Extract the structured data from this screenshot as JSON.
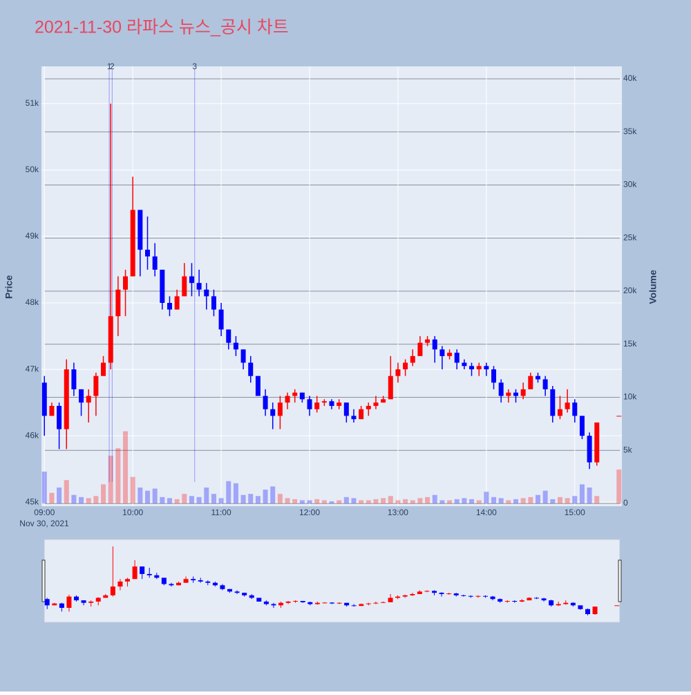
{
  "chart_data": {
    "type": "candlestick",
    "title": "2021-11-30 라파스 뉴스_공시 차트",
    "y_title": "Price",
    "y2_title": "Volume",
    "x_date_label": "Nov 30, 2021",
    "up_color": "#ff0000",
    "down_color": "#0000ff",
    "x": [
      "2021-11-30 09:00",
      "2021-11-30 09:05",
      "2021-11-30 09:10",
      "2021-11-30 09:15",
      "2021-11-30 09:20",
      "2021-11-30 09:25",
      "2021-11-30 09:30",
      "2021-11-30 09:35",
      "2021-11-30 09:40",
      "2021-11-30 09:45",
      "2021-11-30 09:50",
      "2021-11-30 09:55",
      "2021-11-30 10:00",
      "2021-11-30 10:05",
      "2021-11-30 10:10",
      "2021-11-30 10:15",
      "2021-11-30 10:20",
      "2021-11-30 10:25",
      "2021-11-30 10:30",
      "2021-11-30 10:35",
      "2021-11-30 10:40",
      "2021-11-30 10:45",
      "2021-11-30 10:50",
      "2021-11-30 10:55",
      "2021-11-30 11:00",
      "2021-11-30 11:05",
      "2021-11-30 11:10",
      "2021-11-30 11:15",
      "2021-11-30 11:20",
      "2021-11-30 11:25",
      "2021-11-30 11:30",
      "2021-11-30 11:35",
      "2021-11-30 11:40",
      "2021-11-30 11:45",
      "2021-11-30 11:50",
      "2021-11-30 11:55",
      "2021-11-30 12:00",
      "2021-11-30 12:05",
      "2021-11-30 12:10",
      "2021-11-30 12:15",
      "2021-11-30 12:20",
      "2021-11-30 12:25",
      "2021-11-30 12:30",
      "2021-11-30 12:35",
      "2021-11-30 12:40",
      "2021-11-30 12:45",
      "2021-11-30 12:50",
      "2021-11-30 12:55",
      "2021-11-30 13:00",
      "2021-11-30 13:05",
      "2021-11-30 13:10",
      "2021-11-30 13:15",
      "2021-11-30 13:20",
      "2021-11-30 13:25",
      "2021-11-30 13:30",
      "2021-11-30 13:35",
      "2021-11-30 13:40",
      "2021-11-30 13:45",
      "2021-11-30 13:50",
      "2021-11-30 13:55",
      "2021-11-30 14:00",
      "2021-11-30 14:05",
      "2021-11-30 14:10",
      "2021-11-30 14:15",
      "2021-11-30 14:20",
      "2021-11-30 14:25",
      "2021-11-30 14:30",
      "2021-11-30 14:35",
      "2021-11-30 14:40",
      "2021-11-30 14:45",
      "2021-11-30 14:50",
      "2021-11-30 14:55",
      "2021-11-30 15:00",
      "2021-11-30 15:05",
      "2021-11-30 15:10",
      "2021-11-30 15:15",
      "2021-11-30 15:20",
      "2021-11-30 15:25",
      "2021-11-30 15:30"
    ],
    "open": [
      46800,
      46300,
      46450,
      46100,
      47000,
      46700,
      46500,
      46600,
      46900,
      47100,
      47800,
      48200,
      48400,
      49400,
      48800,
      48700,
      48500,
      48000,
      47900,
      48100,
      48400,
      48300,
      48200,
      48100,
      47900,
      47600,
      47400,
      47300,
      47100,
      46900,
      46600,
      46400,
      46300,
      46500,
      46600,
      46650,
      46550,
      46400,
      46500,
      46520,
      46450,
      46500,
      46300,
      46250,
      46400,
      46450,
      46500,
      46550,
      46900,
      47000,
      47100,
      47200,
      47400,
      47450,
      47300,
      47200,
      47250,
      47100,
      47050,
      47000,
      47050,
      47000,
      46800,
      46600,
      46650,
      46600,
      46700,
      46900,
      46850,
      46700,
      46300,
      46400,
      46500,
      46300,
      46000,
      45600,
      null,
      null,
      46300
    ],
    "high": [
      46900,
      46500,
      46500,
      47150,
      47100,
      46700,
      46700,
      46950,
      47200,
      51000,
      48400,
      48500,
      49900,
      49400,
      49300,
      48900,
      48500,
      48100,
      48200,
      48600,
      48600,
      48500,
      48300,
      48200,
      48000,
      47600,
      47500,
      47300,
      47200,
      46900,
      46700,
      46500,
      46600,
      46650,
      46700,
      46650,
      46600,
      46600,
      46550,
      46550,
      46550,
      46500,
      46400,
      46450,
      46500,
      46600,
      46600,
      47200,
      47100,
      47150,
      47300,
      47500,
      47500,
      47500,
      47350,
      47300,
      47300,
      47150,
      47100,
      47100,
      47100,
      47050,
      46850,
      46700,
      46700,
      46800,
      46950,
      46950,
      46900,
      46750,
      46600,
      46700,
      46550,
      46300,
      46050,
      46200,
      null,
      null,
      46300
    ],
    "low": [
      46000,
      46300,
      45800,
      45800,
      46600,
      46300,
      46200,
      46300,
      46900,
      47000,
      47500,
      47800,
      48400,
      48400,
      48500,
      48400,
      47900,
      47800,
      47900,
      48100,
      48100,
      48100,
      47900,
      47800,
      47500,
      47300,
      47200,
      47000,
      46800,
      46600,
      46300,
      46100,
      46100,
      46400,
      46500,
      46500,
      46300,
      46350,
      46450,
      46400,
      46400,
      46200,
      46200,
      46250,
      46300,
      46400,
      46500,
      46550,
      46800,
      46900,
      47050,
      47200,
      47350,
      47100,
      47000,
      47150,
      47000,
      47000,
      46900,
      46900,
      46900,
      46700,
      46500,
      46500,
      46500,
      46550,
      46700,
      46800,
      46600,
      46200,
      46250,
      46350,
      46200,
      45950,
      45500,
      45550,
      null,
      null,
      46300
    ],
    "close": [
      46300,
      46450,
      46100,
      47000,
      46700,
      46500,
      46600,
      46900,
      47100,
      47800,
      48200,
      48400,
      49400,
      48800,
      48700,
      48500,
      48000,
      47900,
      48100,
      48400,
      48300,
      48200,
      48100,
      47900,
      47600,
      47400,
      47300,
      47100,
      46900,
      46600,
      46400,
      46300,
      46500,
      46600,
      46650,
      46550,
      46400,
      46500,
      46520,
      46450,
      46500,
      46300,
      46250,
      46400,
      46450,
      46500,
      46550,
      46900,
      47000,
      47100,
      47200,
      47400,
      47450,
      47300,
      47200,
      47250,
      47100,
      47050,
      47000,
      47050,
      47000,
      46800,
      46600,
      46650,
      46600,
      46700,
      46900,
      46850,
      46700,
      46300,
      46400,
      46500,
      46300,
      46000,
      45600,
      46200,
      null,
      null,
      46300
    ],
    "volume": {
      "axis": "y2",
      "values": [
        3000,
        1000,
        1500,
        2200,
        800,
        600,
        500,
        700,
        1800,
        4500,
        5200,
        6800,
        2500,
        1500,
        1200,
        1400,
        600,
        500,
        400,
        900,
        700,
        600,
        1500,
        900,
        500,
        2100,
        1900,
        800,
        900,
        700,
        1300,
        1600,
        900,
        500,
        400,
        300,
        300,
        400,
        300,
        200,
        300,
        600,
        500,
        300,
        300,
        400,
        500,
        700,
        300,
        400,
        300,
        500,
        600,
        800,
        300,
        300,
        400,
        500,
        400,
        300,
        1100,
        600,
        500,
        300,
        400,
        500,
        600,
        800,
        1200,
        400,
        600,
        500,
        700,
        1800,
        1500,
        700,
        null,
        null,
        3200
      ]
    },
    "annotations": [
      {
        "x": "2021-11-30 09:44",
        "text": "1"
      },
      {
        "x": "2021-11-30 09:46",
        "text": "2"
      },
      {
        "x": "2021-11-30 10:42",
        "text": "3"
      }
    ],
    "xlim": [
      "2021-11-30 08:58",
      "2021-11-30 15:32"
    ],
    "xticks": [
      {
        "value": "2021-11-30 09:00",
        "label": "09:00"
      },
      {
        "value": "2021-11-30 10:00",
        "label": "10:00"
      },
      {
        "value": "2021-11-30 11:00",
        "label": "11:00"
      },
      {
        "value": "2021-11-30 12:00",
        "label": "12:00"
      },
      {
        "value": "2021-11-30 13:00",
        "label": "13:00"
      },
      {
        "value": "2021-11-30 14:00",
        "label": "14:00"
      },
      {
        "value": "2021-11-30 15:00",
        "label": "15:00"
      }
    ],
    "ylim": [
      44940,
      51560
    ],
    "yticks": [
      {
        "value": 45000,
        "label": "45k"
      },
      {
        "value": 46000,
        "label": "46k"
      },
      {
        "value": 47000,
        "label": "47k"
      },
      {
        "value": 48000,
        "label": "48k"
      },
      {
        "value": 49000,
        "label": "49k"
      },
      {
        "value": 50000,
        "label": "50k"
      },
      {
        "value": 51000,
        "label": "51k"
      }
    ],
    "y2lim": [
      -260,
      41170
    ],
    "y2ticks": [
      0,
      {
        "value": 5000,
        "label": "5k"
      },
      {
        "value": 10000,
        "label": "10k"
      },
      {
        "value": 15000,
        "label": "15k"
      },
      {
        "value": 20000,
        "label": "20k"
      },
      {
        "value": 25000,
        "label": "25k"
      },
      {
        "value": 30000,
        "label": "30k"
      },
      {
        "value": 35000,
        "label": "35k"
      },
      {
        "value": 40000,
        "label": "40k"
      }
    ],
    "grid": true,
    "rangeslider": true
  }
}
